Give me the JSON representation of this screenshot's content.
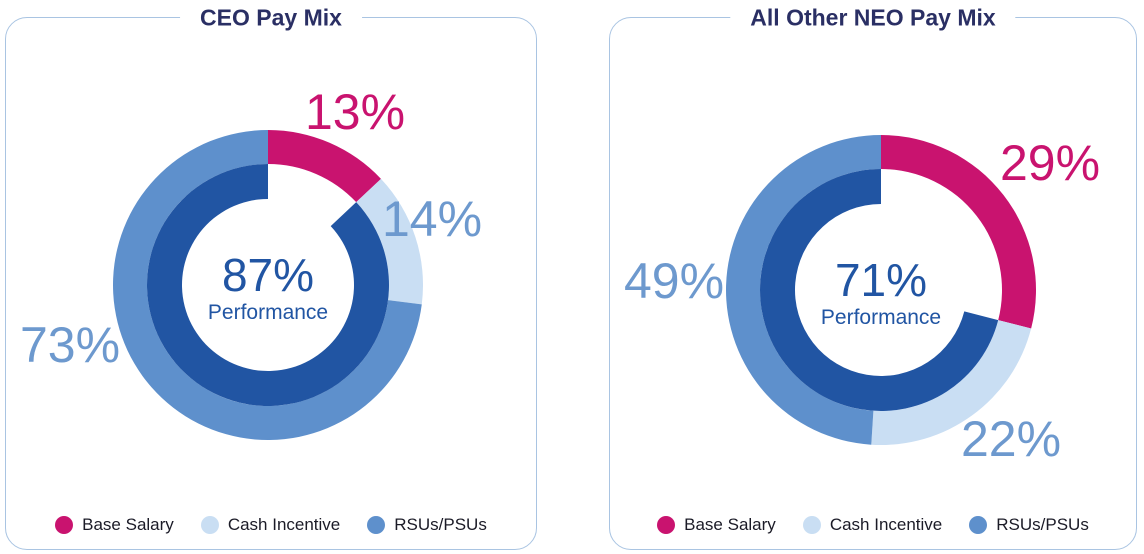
{
  "styles": {
    "background": "#FFFFFF",
    "border_color": "#A9C4E2",
    "title_color": "#2A2F64",
    "label_blue": "#6D99CE",
    "legend_text_color": "#1B1B27",
    "performance_blue": "#2155A3",
    "pink": "#C9136F"
  },
  "chart_data": [
    {
      "type": "pie",
      "variant": "two-ring-donut",
      "title": "CEO Pay Mix",
      "labels": [
        "Base Salary",
        "Cash Incentive",
        "RSUs/PSUs"
      ],
      "values": [
        13,
        14,
        73
      ],
      "value_labels": [
        "13%",
        "14%",
        "73%"
      ],
      "colors": [
        "#C9136F",
        "#C9DEF3",
        "#5E90CC"
      ],
      "inner_ring": {
        "label": "Performance",
        "value": 87,
        "value_label": "87%",
        "color": "#2155A3",
        "gap_aligned_with": "Base Salary"
      },
      "start_angle_deg": -90,
      "direction": "clockwise",
      "legend_position": "bottom"
    },
    {
      "type": "pie",
      "variant": "two-ring-donut",
      "title": "All Other NEO Pay Mix",
      "labels": [
        "Base Salary",
        "Cash Incentive",
        "RSUs/PSUs"
      ],
      "values": [
        29,
        22,
        49
      ],
      "value_labels": [
        "29%",
        "22%",
        "49%"
      ],
      "colors": [
        "#C9136F",
        "#C9DEF3",
        "#5E90CC"
      ],
      "inner_ring": {
        "label": "Performance",
        "value": 71,
        "value_label": "71%",
        "color": "#2155A3",
        "gap_aligned_with": "Base Salary"
      },
      "start_angle_deg": -90,
      "direction": "clockwise",
      "legend_position": "bottom"
    }
  ]
}
